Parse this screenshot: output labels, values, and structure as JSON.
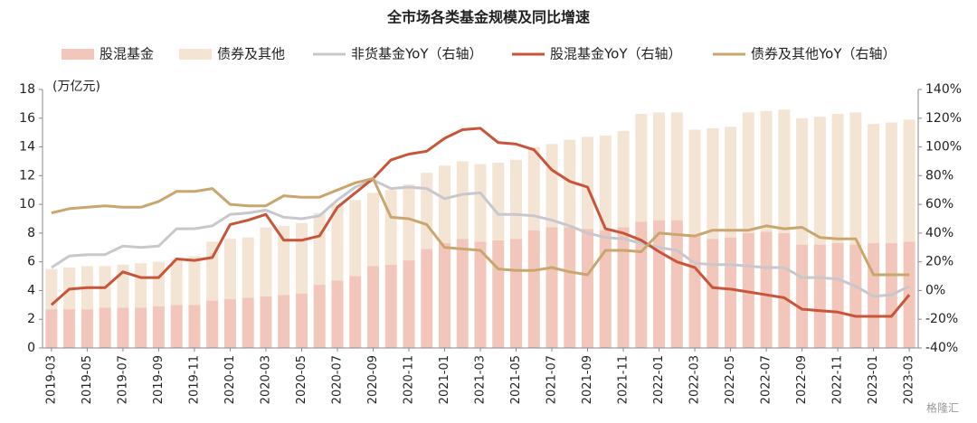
{
  "chart_data": {
    "type": "combo",
    "title": "全市场各类基金规模及同比增速",
    "ylabel": "(万亿元)",
    "watermark": "格隆汇",
    "categories": [
      "2019-03",
      null,
      "2019-05",
      null,
      "2019-07",
      null,
      "2019-09",
      null,
      "2019-11",
      null,
      "2020-01",
      null,
      "2020-03",
      null,
      "2020-05",
      null,
      "2020-07",
      null,
      "2020-09",
      null,
      "2020-11",
      null,
      "2021-01",
      null,
      "2021-03",
      null,
      "2021-05",
      null,
      "2021-07",
      null,
      "2021-09",
      null,
      "2021-11",
      null,
      "2022-01",
      null,
      "2022-03",
      null,
      "2022-05",
      null,
      "2022-07",
      null,
      "2022-09",
      null,
      "2022-11",
      null,
      "2023-01",
      null,
      "2023-03"
    ],
    "ylim": [
      0,
      18
    ],
    "yticks": [
      0,
      2,
      4,
      6,
      8,
      10,
      12,
      14,
      16,
      18
    ],
    "y2lim": [
      -40,
      140
    ],
    "y2ticks": [
      {
        "value": -40,
        "label": "-40%"
      },
      {
        "value": -20,
        "label": "-20%"
      },
      {
        "value": 0,
        "label": "0%"
      },
      {
        "value": 20,
        "label": "20%"
      },
      {
        "value": 40,
        "label": "40%"
      },
      {
        "value": 60,
        "label": "60%"
      },
      {
        "value": 80,
        "label": "80%"
      },
      {
        "value": 100,
        "label": "100%"
      },
      {
        "value": 120,
        "label": "120%"
      },
      {
        "value": 140,
        "label": "140%"
      }
    ],
    "series": [
      {
        "name": "股混基金",
        "type": "bar",
        "color": "#f2c6ba",
        "values": [
          2.7,
          2.7,
          2.7,
          2.8,
          2.8,
          2.8,
          2.9,
          3.0,
          3.0,
          3.3,
          3.4,
          3.5,
          3.6,
          3.7,
          3.8,
          4.4,
          4.7,
          5.0,
          5.7,
          5.8,
          6.1,
          6.9,
          7.3,
          7.6,
          7.4,
          7.5,
          7.6,
          8.2,
          8.4,
          8.4,
          8.3,
          8.2,
          8.4,
          8.8,
          8.9,
          8.9,
          7.8,
          7.6,
          7.7,
          8.0,
          8.1,
          8.0,
          7.2,
          7.2,
          7.3,
          7.2,
          7.3,
          7.3,
          7.4
        ]
      },
      {
        "name": "债券及其他",
        "type": "bar",
        "color": "#f3e4d4",
        "values": [
          2.8,
          2.9,
          3.0,
          2.9,
          3.0,
          3.1,
          3.1,
          3.2,
          3.4,
          4.1,
          4.2,
          4.2,
          4.8,
          4.8,
          4.9,
          5.0,
          5.3,
          5.3,
          5.1,
          5.2,
          5.3,
          5.3,
          5.4,
          5.4,
          5.4,
          5.4,
          5.5,
          5.8,
          5.8,
          6.1,
          6.4,
          6.6,
          6.7,
          7.5,
          7.5,
          7.5,
          7.4,
          7.7,
          7.7,
          8.4,
          8.4,
          8.6,
          8.8,
          8.9,
          9.0,
          9.2,
          8.3,
          8.4,
          8.5
        ]
      },
      {
        "name": "非货基金YoY（右轴）",
        "type": "line",
        "axis": "y2",
        "color": "#c8c8cc",
        "values": [
          16,
          24,
          25,
          25,
          31,
          30,
          31,
          43,
          43,
          45,
          53,
          54,
          56,
          51,
          50,
          52,
          63,
          72,
          77,
          71,
          72,
          71,
          64,
          67,
          68,
          53,
          53,
          52,
          49,
          45,
          40,
          37,
          36,
          33,
          30,
          28,
          19,
          18,
          18,
          17,
          16,
          16,
          9,
          9,
          8,
          3,
          -4,
          -3,
          3
        ]
      },
      {
        "name": "股混基金YoY（右轴）",
        "type": "line",
        "axis": "y2",
        "color": "#c8553a",
        "values": [
          -10,
          1,
          2,
          2,
          13,
          9,
          9,
          22,
          21,
          23,
          46,
          49,
          53,
          35,
          35,
          38,
          58,
          68,
          78,
          91,
          95,
          97,
          106,
          112,
          113,
          103,
          102,
          98,
          84,
          76,
          72,
          43,
          40,
          35,
          27,
          20,
          16,
          2,
          1,
          -1,
          -3,
          -5,
          -13,
          -14,
          -15,
          -18,
          -18,
          -18,
          -3
        ]
      },
      {
        "name": "债券及其他YoY（右轴）",
        "type": "line",
        "axis": "y2",
        "color": "#c9a66e",
        "values": [
          54,
          57,
          58,
          59,
          58,
          58,
          62,
          69,
          69,
          71,
          60,
          59,
          59,
          66,
          65,
          65,
          70,
          75,
          78,
          51,
          50,
          46,
          30,
          29,
          28,
          15,
          14,
          14,
          16,
          13,
          11,
          28,
          28,
          27,
          40,
          39,
          38,
          42,
          42,
          42,
          45,
          43,
          44,
          37,
          36,
          36,
          11,
          11,
          11
        ]
      }
    ]
  }
}
